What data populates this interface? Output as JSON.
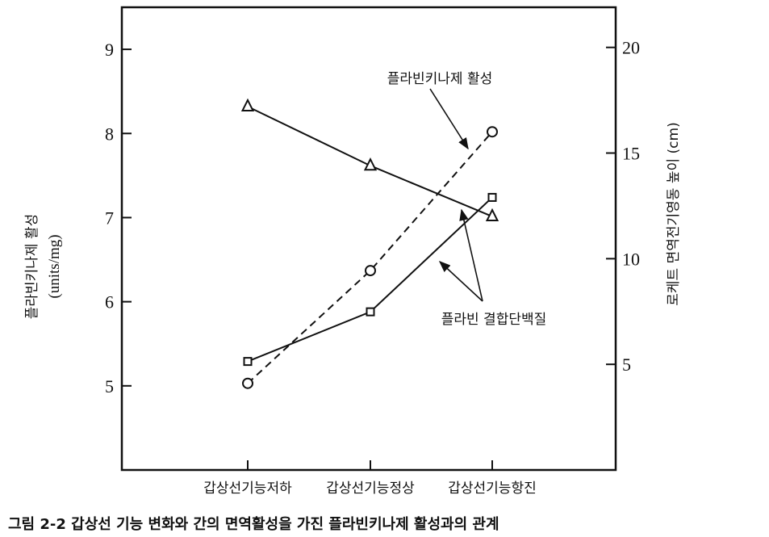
{
  "chart_data": {
    "type": "line",
    "title": "그림 2-2  갑상선 기능 변화와 간의 면역활성을 가진 플라빈키나제 활성과의 관계",
    "categories": [
      "갑상선기능저하",
      "갑상선기능정상",
      "갑상선기능항진"
    ],
    "ylabel_left": [
      "플라빈키나제 활성",
      "(units/mg)"
    ],
    "ylabel_right": "로케트 면역전기영동 높이 (cm)",
    "ylim_left": [
      4,
      9.5
    ],
    "ylim_right": [
      0,
      21.9
    ],
    "yticks_left": [
      5,
      6,
      7,
      8,
      9
    ],
    "yticks_right": [
      5,
      10,
      15,
      20
    ],
    "grid": false,
    "series": [
      {
        "marker": "circle",
        "line": "dashed",
        "axis": "left",
        "values": [
          5.03,
          6.37,
          8.02
        ]
      },
      {
        "marker": "square",
        "line": "solid",
        "axis": "left",
        "values": [
          5.29,
          5.88,
          7.24
        ]
      },
      {
        "marker": "triangle",
        "line": "solid",
        "axis": "right",
        "values": [
          17.2,
          14.4,
          12.0
        ]
      }
    ],
    "annotations": [
      {
        "text": "플라빈키나제 활성"
      },
      {
        "text": "플라빈 결합단백질"
      }
    ],
    "color": "#111111"
  }
}
